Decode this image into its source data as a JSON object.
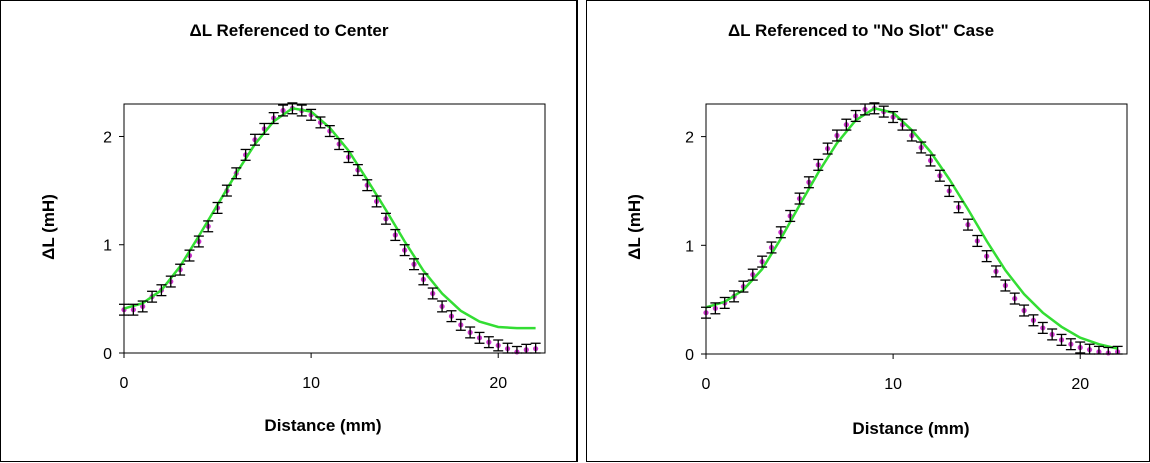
{
  "colors": {
    "marker": "#cc33cc",
    "fit": "#33dd33",
    "error_bar": "#000000"
  },
  "chart_data": [
    {
      "type": "scatter",
      "title": "ΔL Referenced to Center",
      "xlabel": "Distance (mm)",
      "ylabel": "ΔL (mH)",
      "xlim": [
        0,
        22.5
      ],
      "ylim": [
        0,
        2.3
      ],
      "xticks": [
        0,
        10,
        20
      ],
      "yticks": [
        0,
        1,
        2
      ],
      "error_bar": 0.05,
      "series": [
        {
          "kind": "measured",
          "x": [
            0,
            0.5,
            1,
            1.5,
            2,
            2.5,
            3,
            3.5,
            4,
            4.5,
            5,
            5.5,
            6,
            6.5,
            7,
            7.5,
            8,
            8.5,
            9,
            9.5,
            10,
            10.5,
            11,
            11.5,
            12,
            12.5,
            13,
            13.5,
            14,
            14.5,
            15,
            15.5,
            16,
            16.5,
            17,
            17.5,
            18,
            18.5,
            19,
            19.5,
            20,
            20.5,
            21,
            21.5,
            22
          ],
          "y": [
            0.4,
            0.4,
            0.43,
            0.52,
            0.58,
            0.66,
            0.77,
            0.9,
            1.03,
            1.17,
            1.34,
            1.5,
            1.66,
            1.83,
            1.97,
            2.07,
            2.17,
            2.24,
            2.26,
            2.24,
            2.2,
            2.13,
            2.05,
            1.93,
            1.81,
            1.69,
            1.55,
            1.4,
            1.24,
            1.09,
            0.95,
            0.82,
            0.68,
            0.55,
            0.43,
            0.34,
            0.26,
            0.19,
            0.14,
            0.1,
            0.07,
            0.04,
            0.01,
            0.03,
            0.04
          ]
        },
        {
          "kind": "fit",
          "x": [
            0,
            1,
            2,
            3,
            4,
            5,
            6,
            7,
            8,
            9,
            10,
            11,
            12,
            13,
            14,
            15,
            16,
            17,
            18,
            19,
            20,
            21,
            22
          ],
          "y": [
            0.41,
            0.46,
            0.58,
            0.8,
            1.08,
            1.37,
            1.66,
            1.93,
            2.14,
            2.26,
            2.23,
            2.08,
            1.87,
            1.6,
            1.32,
            1.03,
            0.76,
            0.55,
            0.39,
            0.29,
            0.24,
            0.23,
            0.23
          ]
        }
      ]
    },
    {
      "type": "scatter",
      "title": "ΔL Referenced to \"No Slot\" Case",
      "xlabel": "Distance (mm)",
      "ylabel": "ΔL (mH)",
      "xlim": [
        0,
        22.5
      ],
      "ylim": [
        0,
        2.3
      ],
      "xticks": [
        0,
        10,
        20
      ],
      "yticks": [
        0,
        1,
        2
      ],
      "error_bar": 0.05,
      "series": [
        {
          "kind": "measured",
          "x": [
            0,
            0.5,
            1,
            1.5,
            2,
            2.5,
            3,
            3.5,
            4,
            4.5,
            5,
            5.5,
            6,
            6.5,
            7,
            7.5,
            8,
            8.5,
            9,
            9.5,
            10,
            10.5,
            11,
            11.5,
            12,
            12.5,
            13,
            13.5,
            14,
            14.5,
            15,
            15.5,
            16,
            16.5,
            17,
            17.5,
            18,
            18.5,
            19,
            19.5,
            20,
            20.5,
            21,
            21.5,
            22
          ],
          "y": [
            0.38,
            0.42,
            0.47,
            0.53,
            0.62,
            0.73,
            0.85,
            0.98,
            1.12,
            1.27,
            1.43,
            1.58,
            1.74,
            1.89,
            2.01,
            2.11,
            2.19,
            2.25,
            2.26,
            2.23,
            2.18,
            2.11,
            2.01,
            1.9,
            1.78,
            1.64,
            1.5,
            1.35,
            1.19,
            1.04,
            0.9,
            0.76,
            0.63,
            0.51,
            0.4,
            0.31,
            0.24,
            0.18,
            0.13,
            0.09,
            0.06,
            0.04,
            0.02,
            0.01,
            0.02
          ]
        },
        {
          "kind": "fit",
          "x": [
            0,
            1,
            2,
            3,
            4,
            5,
            6,
            7,
            8,
            9,
            10,
            11,
            12,
            13,
            14,
            15,
            16,
            17,
            18,
            19,
            20,
            21,
            22
          ],
          "y": [
            0.43,
            0.48,
            0.59,
            0.78,
            1.06,
            1.37,
            1.67,
            1.94,
            2.15,
            2.26,
            2.22,
            2.06,
            1.86,
            1.61,
            1.33,
            1.04,
            0.77,
            0.55,
            0.38,
            0.25,
            0.15,
            0.09,
            0.05
          ]
        }
      ]
    }
  ]
}
